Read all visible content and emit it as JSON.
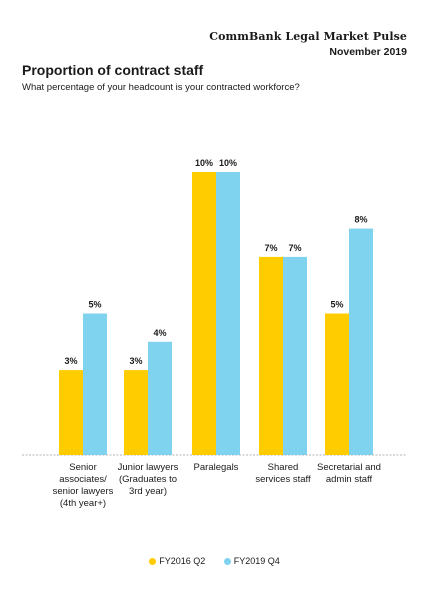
{
  "header": {
    "brand": "CommBank Legal Market Pulse",
    "date": "November 2019"
  },
  "chart_data": {
    "type": "bar",
    "title": "Proportion of contract staff",
    "subtitle": "What percentage of your headcount is your contracted workforce?",
    "categories": [
      "Senior associates/ senior lawyers (4th year+)",
      "Junior lawyers (Graduates to 3rd year)",
      "Paralegals",
      "Shared services staff",
      "Secretarial and admin staff"
    ],
    "series": [
      {
        "name": "FY2016 Q2",
        "values": [
          3,
          3,
          10,
          7,
          5
        ],
        "labels": [
          "3%",
          "3%",
          "10%",
          "7%",
          "5%"
        ],
        "color": "#FFCC00"
      },
      {
        "name": "FY2019 Q4",
        "values": [
          5,
          4,
          10,
          7,
          8
        ],
        "labels": [
          "5%",
          "4%",
          "10%",
          "7%",
          "8%"
        ],
        "color": "#7FD3EE"
      }
    ],
    "ylim": [
      0,
      10
    ],
    "grid": false,
    "legend_position": "bottom"
  }
}
